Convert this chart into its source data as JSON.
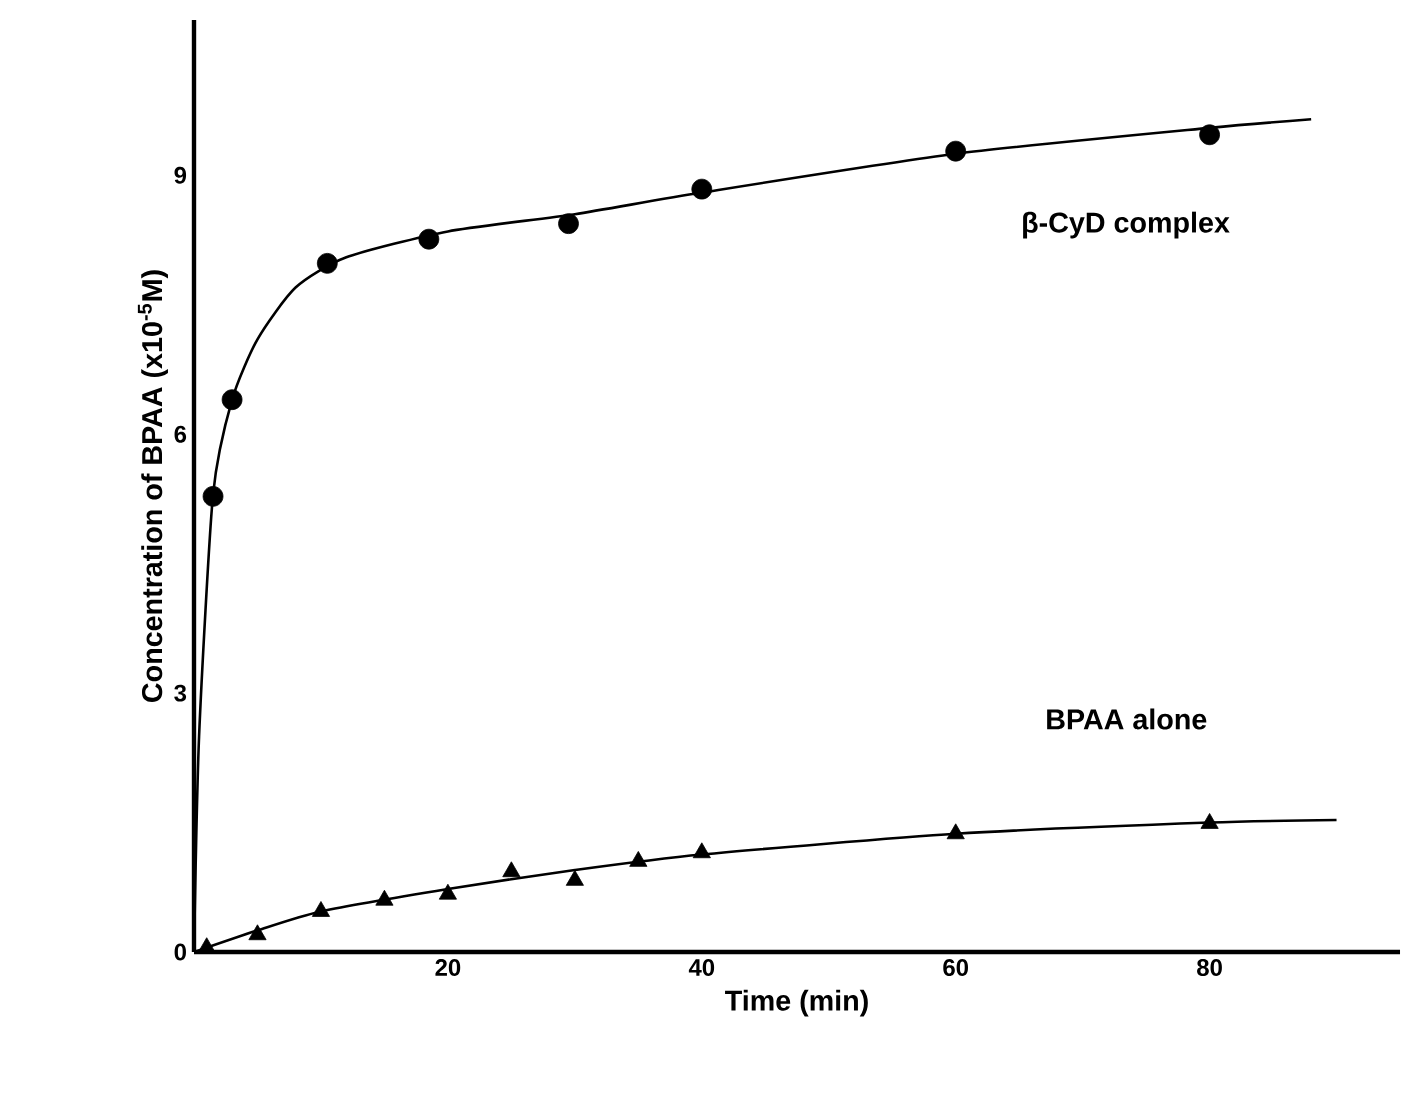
{
  "chart_data": {
    "type": "scatter",
    "xlabel": "Time    (min)",
    "ylabel": "Concentration of BPAA (x10$^{-5}$M)",
    "xlim": [
      0,
      95
    ],
    "ylim": [
      0,
      10.8
    ],
    "xticks": [
      20,
      40,
      60,
      80
    ],
    "yticks": [
      0,
      3,
      6,
      9
    ],
    "grid": false,
    "legend": false,
    "series": [
      {
        "name": "β-CyD complex",
        "marker": "circle",
        "color": "#000000",
        "x": [
          1.5,
          3,
          10.5,
          18.5,
          29.5,
          40,
          60,
          80
        ],
        "values": [
          5.28,
          6.4,
          7.98,
          8.26,
          8.44,
          8.84,
          9.28,
          9.47
        ]
      },
      {
        "type": "line",
        "marker": "none",
        "color": "#000000",
        "x": [
          0,
          0.4,
          1.5,
          3,
          5,
          8,
          12,
          20,
          30,
          40,
          60,
          80,
          88
        ],
        "values": [
          0,
          2.5,
          5.3,
          6.4,
          7.1,
          7.7,
          8.05,
          8.35,
          8.55,
          8.8,
          9.25,
          9.55,
          9.65
        ]
      },
      {
        "name": "BPAA alone",
        "marker": "triangle",
        "color": "#000000",
        "x": [
          1,
          5,
          10,
          15,
          20,
          25,
          30,
          35,
          40,
          60,
          80
        ],
        "values": [
          0.05,
          0.2,
          0.47,
          0.6,
          0.67,
          0.93,
          0.83,
          1.05,
          1.15,
          1.37,
          1.49
        ]
      },
      {
        "type": "line",
        "marker": "none",
        "color": "#000000",
        "x": [
          0,
          5,
          10,
          20,
          30,
          40,
          60,
          80,
          90
        ],
        "values": [
          0,
          0.25,
          0.47,
          0.73,
          0.95,
          1.13,
          1.37,
          1.5,
          1.53
        ]
      }
    ]
  }
}
